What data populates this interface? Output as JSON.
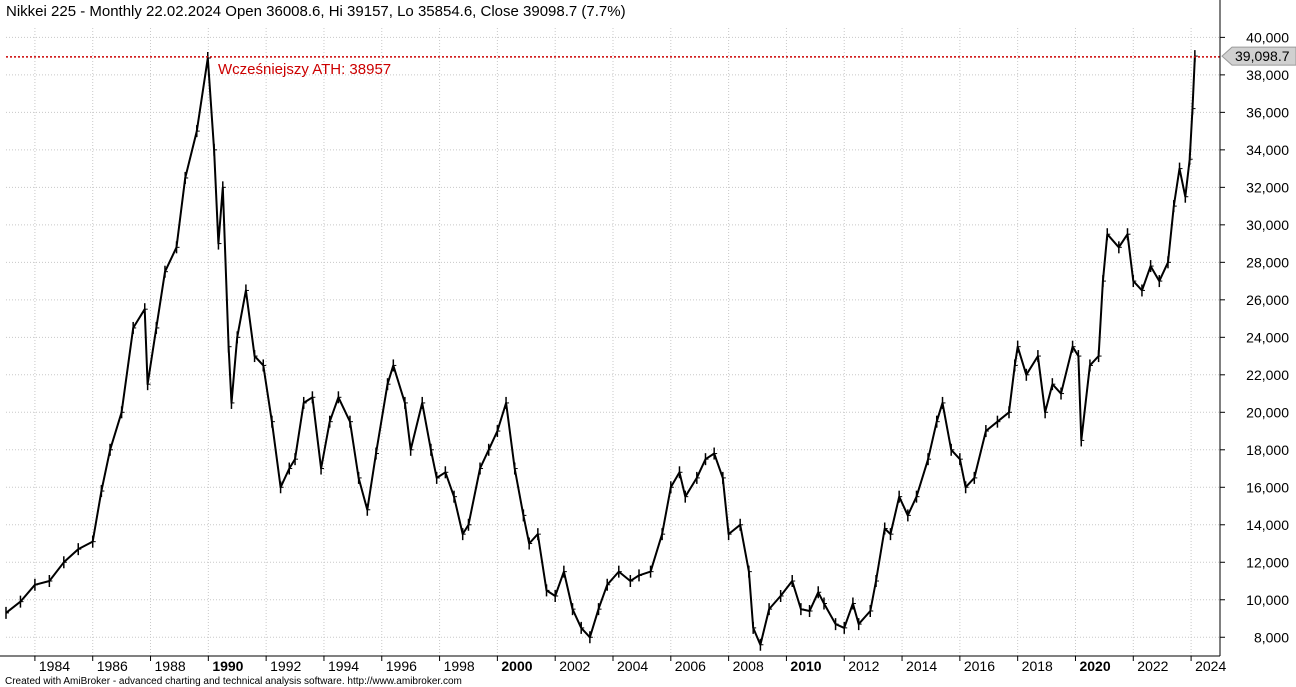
{
  "chart_data": {
    "type": "ohlc",
    "title": "Nikkei 225 - Monthly 22.02.2024 Open 36008.6, Hi 39157, Lo 35854.6, Close 39098.7 (7.7%)",
    "ylim": [
      7000,
      40500
    ],
    "yticks": [
      8000,
      10000,
      12000,
      14000,
      16000,
      18000,
      20000,
      22000,
      24000,
      26000,
      28000,
      30000,
      32000,
      34000,
      36000,
      38000,
      40000
    ],
    "ytick_labels": [
      "8,000",
      "10,000",
      "12,000",
      "14,000",
      "16,000",
      "18,000",
      "20,000",
      "22,000",
      "24,000",
      "26,000",
      "28,000",
      "30,000",
      "32,000",
      "34,000",
      "36,000",
      "38,000",
      "40,000"
    ],
    "xlim": [
      1983.0,
      2025.0
    ],
    "xticks": [
      1984,
      1986,
      1988,
      1990,
      1992,
      1994,
      1996,
      1998,
      2000,
      2002,
      2004,
      2006,
      2008,
      2010,
      2012,
      2014,
      2016,
      2018,
      2020,
      2022,
      2024
    ],
    "xtick_labels": [
      "1984",
      "1986",
      "1988",
      "1990",
      "1992",
      "1994",
      "1996",
      "1998",
      "2000",
      "2002",
      "2004",
      "2006",
      "2008",
      "2010",
      "2012",
      "2014",
      "2016",
      "2018",
      "2020",
      "2022",
      "2024"
    ],
    "xtick_bold": [
      "1990",
      "2000",
      "2010",
      "2020"
    ],
    "grid": true,
    "reference_line": {
      "value": 38957,
      "label": "Wcześniejszy ATH: 38957",
      "color": "#cc0000"
    },
    "last_price_label": "39,098.7",
    "footer": "Created with AmiBroker - advanced charting and technical analysis software. http://www.amibroker.com",
    "series": [
      {
        "points": [
          [
            1983.0,
            9300
          ],
          [
            1983.5,
            9900
          ],
          [
            1984.0,
            10800
          ],
          [
            1984.5,
            11000
          ],
          [
            1985.0,
            12000
          ],
          [
            1985.5,
            12700
          ],
          [
            1986.0,
            13100
          ],
          [
            1986.3,
            15800
          ],
          [
            1986.6,
            18000
          ],
          [
            1987.0,
            20000
          ],
          [
            1987.4,
            24500
          ],
          [
            1987.8,
            25500
          ],
          [
            1987.9,
            21500
          ],
          [
            1988.2,
            24500
          ],
          [
            1988.5,
            27500
          ],
          [
            1988.9,
            28800
          ],
          [
            1989.2,
            32500
          ],
          [
            1989.6,
            35000
          ],
          [
            1989.98,
            38900
          ],
          [
            1990.2,
            34000
          ],
          [
            1990.35,
            29000
          ],
          [
            1990.5,
            32000
          ],
          [
            1990.7,
            23500
          ],
          [
            1990.8,
            20500
          ],
          [
            1991.0,
            24000
          ],
          [
            1991.3,
            26500
          ],
          [
            1991.6,
            23000
          ],
          [
            1991.9,
            22500
          ],
          [
            1992.2,
            19500
          ],
          [
            1992.5,
            16000
          ],
          [
            1992.8,
            17000
          ],
          [
            1993.0,
            17500
          ],
          [
            1993.3,
            20500
          ],
          [
            1993.6,
            20800
          ],
          [
            1993.9,
            17000
          ],
          [
            1994.2,
            19500
          ],
          [
            1994.5,
            20800
          ],
          [
            1994.9,
            19500
          ],
          [
            1995.2,
            16500
          ],
          [
            1995.5,
            14800
          ],
          [
            1995.8,
            17800
          ],
          [
            1996.2,
            21500
          ],
          [
            1996.4,
            22500
          ],
          [
            1996.8,
            20500
          ],
          [
            1997.0,
            18000
          ],
          [
            1997.4,
            20500
          ],
          [
            1997.7,
            18000
          ],
          [
            1997.9,
            16500
          ],
          [
            1998.2,
            16800
          ],
          [
            1998.5,
            15500
          ],
          [
            1998.8,
            13500
          ],
          [
            1999.0,
            14000
          ],
          [
            1999.4,
            17000
          ],
          [
            1999.7,
            18000
          ],
          [
            2000.0,
            19000
          ],
          [
            2000.3,
            20500
          ],
          [
            2000.6,
            17000
          ],
          [
            2000.9,
            14500
          ],
          [
            2001.1,
            13000
          ],
          [
            2001.4,
            13500
          ],
          [
            2001.7,
            10500
          ],
          [
            2002.0,
            10200
          ],
          [
            2002.3,
            11500
          ],
          [
            2002.6,
            9500
          ],
          [
            2002.9,
            8500
          ],
          [
            2003.2,
            8000
          ],
          [
            2003.5,
            9500
          ],
          [
            2003.8,
            10800
          ],
          [
            2004.2,
            11500
          ],
          [
            2004.6,
            11000
          ],
          [
            2004.9,
            11300
          ],
          [
            2005.3,
            11500
          ],
          [
            2005.7,
            13500
          ],
          [
            2006.0,
            16000
          ],
          [
            2006.3,
            16800
          ],
          [
            2006.5,
            15500
          ],
          [
            2006.9,
            16500
          ],
          [
            2007.2,
            17500
          ],
          [
            2007.5,
            17800
          ],
          [
            2007.8,
            16500
          ],
          [
            2008.0,
            13500
          ],
          [
            2008.4,
            14000
          ],
          [
            2008.7,
            11500
          ],
          [
            2008.85,
            8500
          ],
          [
            2009.1,
            7600
          ],
          [
            2009.4,
            9500
          ],
          [
            2009.8,
            10200
          ],
          [
            2010.2,
            11000
          ],
          [
            2010.5,
            9500
          ],
          [
            2010.8,
            9400
          ],
          [
            2011.1,
            10400
          ],
          [
            2011.3,
            9800
          ],
          [
            2011.7,
            8700
          ],
          [
            2012.0,
            8500
          ],
          [
            2012.3,
            9800
          ],
          [
            2012.5,
            8700
          ],
          [
            2012.9,
            9400
          ],
          [
            2013.1,
            11000
          ],
          [
            2013.4,
            13800
          ],
          [
            2013.6,
            13500
          ],
          [
            2013.9,
            15500
          ],
          [
            2014.2,
            14500
          ],
          [
            2014.5,
            15500
          ],
          [
            2014.9,
            17500
          ],
          [
            2015.2,
            19500
          ],
          [
            2015.4,
            20500
          ],
          [
            2015.7,
            18000
          ],
          [
            2016.0,
            17500
          ],
          [
            2016.2,
            16000
          ],
          [
            2016.5,
            16500
          ],
          [
            2016.9,
            19000
          ],
          [
            2017.3,
            19500
          ],
          [
            2017.7,
            20000
          ],
          [
            2017.9,
            22500
          ],
          [
            2018.0,
            23500
          ],
          [
            2018.3,
            22000
          ],
          [
            2018.7,
            23000
          ],
          [
            2018.95,
            20000
          ],
          [
            2019.2,
            21500
          ],
          [
            2019.5,
            21000
          ],
          [
            2019.9,
            23500
          ],
          [
            2020.1,
            23000
          ],
          [
            2020.2,
            18500
          ],
          [
            2020.5,
            22500
          ],
          [
            2020.8,
            23000
          ],
          [
            2020.95,
            27000
          ],
          [
            2021.1,
            29500
          ],
          [
            2021.5,
            28800
          ],
          [
            2021.8,
            29500
          ],
          [
            2022.0,
            27000
          ],
          [
            2022.3,
            26500
          ],
          [
            2022.6,
            27800
          ],
          [
            2022.9,
            27000
          ],
          [
            2023.2,
            28000
          ],
          [
            2023.4,
            31000
          ],
          [
            2023.6,
            33000
          ],
          [
            2023.8,
            31500
          ],
          [
            2023.95,
            33500
          ],
          [
            2024.05,
            36200
          ],
          [
            2024.13,
            39000
          ]
        ]
      }
    ]
  }
}
